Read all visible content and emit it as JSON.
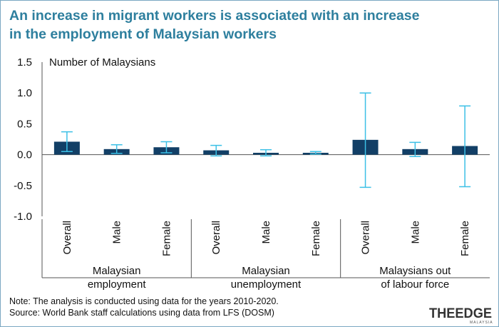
{
  "title_lines": [
    "An increase in migrant workers is associated with an increase",
    "in the employment of Malaysian workers"
  ],
  "notes": [
    "Note: The analysis is conducted using data for the years 2010-2020.",
    "Source: World Bank staff calculations using data from LFS (DOSM)"
  ],
  "logo": {
    "text": "THEEDGE",
    "subtext": "MALAYSIA"
  },
  "colors": {
    "title": "#2e7f9e",
    "bar": "#123f66",
    "error_bar": "#3cc0e6",
    "axis": "#555555"
  },
  "chart_data": {
    "type": "bar",
    "title": "",
    "ylabel": "Number of Malaysians",
    "ylim": [
      -1.0,
      1.5
    ],
    "yticks": [
      1.5,
      1.0,
      0.5,
      0.0,
      -0.5,
      -1.0
    ],
    "ytick_labels": [
      "1.5",
      "1.0",
      "0.5",
      "0.0",
      "-0.5",
      "-1.0"
    ],
    "grid": false,
    "groups": [
      {
        "label_lines": [
          "Malaysian",
          "employment"
        ],
        "categories": [
          "Overall",
          "Male",
          "Female"
        ]
      },
      {
        "label_lines": [
          "Malaysian",
          "unemployment"
        ],
        "categories": [
          "Overall",
          "Male",
          "Female"
        ]
      },
      {
        "label_lines": [
          "Malaysians out",
          "of labour force"
        ],
        "categories": [
          "Overall",
          "Male",
          "Female"
        ]
      }
    ],
    "values": [
      0.21,
      0.09,
      0.12,
      0.07,
      0.03,
      0.03,
      0.24,
      0.09,
      0.14
    ],
    "error_low": [
      0.05,
      0.02,
      0.03,
      -0.02,
      -0.02,
      0.01,
      -0.53,
      -0.03,
      -0.52
    ],
    "error_high": [
      0.37,
      0.16,
      0.21,
      0.15,
      0.08,
      0.05,
      1.0,
      0.2,
      0.79
    ]
  }
}
